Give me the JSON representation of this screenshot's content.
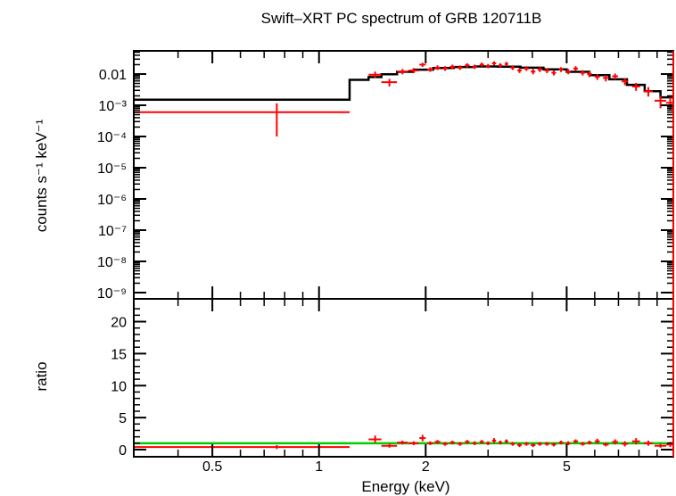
{
  "chart_data": {
    "type": "scatter",
    "title": "Swift–XRT PC spectrum of GRB 120711B",
    "xlabel": "Energy (keV)",
    "x_scale": "log",
    "xlim": [
      0.3,
      10
    ],
    "x_ticks": [
      "0.5",
      "1",
      "2",
      "5"
    ],
    "colors": {
      "data": "#ff0000",
      "model": "#000000",
      "unity": "#00cc00",
      "frame": "#000000"
    },
    "top_panel": {
      "ylabel": "counts s⁻¹ keV⁻¹",
      "y_scale": "log",
      "ylim": [
        0.0006,
        0.035
      ],
      "y_ticks": [
        "0.01",
        "10⁻³",
        "10⁻⁴",
        "10⁻⁵",
        "10⁻⁶",
        "10⁻⁷",
        "10⁻⁸",
        "10⁻⁹"
      ],
      "data_points": [
        {
          "x": 0.76,
          "xlo": 0.3,
          "xhi": 1.22,
          "y": 0.0006,
          "ylo": 0.0001,
          "yhi": 0.00115
        },
        {
          "x": 1.44,
          "xlo": 1.38,
          "xhi": 1.5,
          "y": 0.0095,
          "ylo": 0.0075,
          "yhi": 0.012
        },
        {
          "x": 1.58,
          "xlo": 1.5,
          "xhi": 1.66,
          "y": 0.0055,
          "ylo": 0.004,
          "yhi": 0.007
        },
        {
          "x": 1.72,
          "xlo": 1.66,
          "xhi": 1.78,
          "y": 0.012,
          "ylo": 0.0098,
          "yhi": 0.0145
        },
        {
          "x": 1.85,
          "xlo": 1.79,
          "xhi": 1.91,
          "y": 0.013,
          "ylo": 0.0108,
          "yhi": 0.0155
        },
        {
          "x": 1.96,
          "xlo": 1.92,
          "xhi": 2.0,
          "y": 0.02,
          "ylo": 0.017,
          "yhi": 0.023
        },
        {
          "x": 2.06,
          "xlo": 2.02,
          "xhi": 2.1,
          "y": 0.014,
          "ylo": 0.0118,
          "yhi": 0.0165
        },
        {
          "x": 2.16,
          "xlo": 2.12,
          "xhi": 2.2,
          "y": 0.016,
          "ylo": 0.0135,
          "yhi": 0.019
        },
        {
          "x": 2.27,
          "xlo": 2.23,
          "xhi": 2.31,
          "y": 0.015,
          "ylo": 0.0127,
          "yhi": 0.0178
        },
        {
          "x": 2.38,
          "xlo": 2.34,
          "xhi": 2.42,
          "y": 0.017,
          "ylo": 0.0145,
          "yhi": 0.02
        },
        {
          "x": 2.5,
          "xlo": 2.46,
          "xhi": 2.54,
          "y": 0.016,
          "ylo": 0.0136,
          "yhi": 0.0188
        },
        {
          "x": 2.62,
          "xlo": 2.58,
          "xhi": 2.66,
          "y": 0.019,
          "ylo": 0.0162,
          "yhi": 0.0222
        },
        {
          "x": 2.75,
          "xlo": 2.71,
          "xhi": 2.79,
          "y": 0.017,
          "ylo": 0.0145,
          "yhi": 0.02
        },
        {
          "x": 2.88,
          "xlo": 2.84,
          "xhi": 2.92,
          "y": 0.02,
          "ylo": 0.0172,
          "yhi": 0.0232
        },
        {
          "x": 3.0,
          "xlo": 2.96,
          "xhi": 3.04,
          "y": 0.018,
          "ylo": 0.0154,
          "yhi": 0.021
        },
        {
          "x": 3.12,
          "xlo": 3.08,
          "xhi": 3.16,
          "y": 0.022,
          "ylo": 0.0188,
          "yhi": 0.0255
        },
        {
          "x": 3.25,
          "xlo": 3.21,
          "xhi": 3.29,
          "y": 0.019,
          "ylo": 0.0162,
          "yhi": 0.0222
        },
        {
          "x": 3.38,
          "xlo": 3.34,
          "xhi": 3.42,
          "y": 0.021,
          "ylo": 0.018,
          "yhi": 0.0245
        },
        {
          "x": 3.52,
          "xlo": 3.47,
          "xhi": 3.57,
          "y": 0.016,
          "ylo": 0.0135,
          "yhi": 0.019
        },
        {
          "x": 3.68,
          "xlo": 3.63,
          "xhi": 3.73,
          "y": 0.013,
          "ylo": 0.0108,
          "yhi": 0.0155
        },
        {
          "x": 3.85,
          "xlo": 3.79,
          "xhi": 3.91,
          "y": 0.015,
          "ylo": 0.0126,
          "yhi": 0.0178
        },
        {
          "x": 4.02,
          "xlo": 3.96,
          "xhi": 4.08,
          "y": 0.012,
          "ylo": 0.0098,
          "yhi": 0.0145
        },
        {
          "x": 4.2,
          "xlo": 4.14,
          "xhi": 4.26,
          "y": 0.014,
          "ylo": 0.0116,
          "yhi": 0.0166
        },
        {
          "x": 4.4,
          "xlo": 4.33,
          "xhi": 4.47,
          "y": 0.013,
          "ylo": 0.0107,
          "yhi": 0.0155
        },
        {
          "x": 4.6,
          "xlo": 4.53,
          "xhi": 4.67,
          "y": 0.011,
          "ylo": 0.009,
          "yhi": 0.0132
        },
        {
          "x": 4.82,
          "xlo": 4.75,
          "xhi": 4.89,
          "y": 0.014,
          "ylo": 0.0116,
          "yhi": 0.0166
        },
        {
          "x": 5.05,
          "xlo": 4.97,
          "xhi": 5.13,
          "y": 0.012,
          "ylo": 0.0098,
          "yhi": 0.0145
        },
        {
          "x": 5.3,
          "xlo": 5.22,
          "xhi": 5.38,
          "y": 0.015,
          "ylo": 0.0125,
          "yhi": 0.0178
        },
        {
          "x": 5.55,
          "xlo": 5.46,
          "xhi": 5.64,
          "y": 0.011,
          "ylo": 0.009,
          "yhi": 0.0132
        },
        {
          "x": 5.8,
          "xlo": 5.71,
          "xhi": 5.89,
          "y": 0.01,
          "ylo": 0.008,
          "yhi": 0.0122
        },
        {
          "x": 6.1,
          "xlo": 6.0,
          "xhi": 6.2,
          "y": 0.0082,
          "ylo": 0.0065,
          "yhi": 0.01
        },
        {
          "x": 6.45,
          "xlo": 6.33,
          "xhi": 6.57,
          "y": 0.0075,
          "ylo": 0.0058,
          "yhi": 0.0093
        },
        {
          "x": 6.85,
          "xlo": 6.72,
          "xhi": 6.98,
          "y": 0.0085,
          "ylo": 0.0067,
          "yhi": 0.0104
        },
        {
          "x": 7.3,
          "xlo": 7.15,
          "xhi": 7.45,
          "y": 0.0058,
          "ylo": 0.0044,
          "yhi": 0.0073
        },
        {
          "x": 7.85,
          "xlo": 7.65,
          "xhi": 8.05,
          "y": 0.004,
          "ylo": 0.0029,
          "yhi": 0.0052
        },
        {
          "x": 8.5,
          "xlo": 8.25,
          "xhi": 8.75,
          "y": 0.0028,
          "ylo": 0.0019,
          "yhi": 0.0038
        },
        {
          "x": 9.2,
          "xlo": 8.85,
          "xhi": 9.55,
          "y": 0.0014,
          "ylo": 0.0008,
          "yhi": 0.002
        },
        {
          "x": 9.8,
          "xlo": 9.55,
          "xhi": 10.0,
          "y": 0.0012,
          "ylo": 0.0007,
          "yhi": 0.0018
        }
      ],
      "model_steps": [
        {
          "xlo": 0.3,
          "xhi": 1.22,
          "y": 0.0015
        },
        {
          "xlo": 1.22,
          "xhi": 1.38,
          "y": 0.0065
        },
        {
          "xlo": 1.38,
          "xhi": 1.5,
          "y": 0.008
        },
        {
          "xlo": 1.5,
          "xhi": 1.66,
          "y": 0.0098
        },
        {
          "xlo": 1.66,
          "xhi": 1.85,
          "y": 0.0118
        },
        {
          "xlo": 1.85,
          "xhi": 2.1,
          "y": 0.0138
        },
        {
          "xlo": 2.1,
          "xhi": 2.4,
          "y": 0.0155
        },
        {
          "xlo": 2.4,
          "xhi": 2.75,
          "y": 0.0168
        },
        {
          "xlo": 2.75,
          "xhi": 3.2,
          "y": 0.0175
        },
        {
          "xlo": 3.2,
          "xhi": 3.7,
          "y": 0.0172
        },
        {
          "xlo": 3.7,
          "xhi": 4.3,
          "y": 0.016
        },
        {
          "xlo": 4.3,
          "xhi": 5.0,
          "y": 0.0142
        },
        {
          "xlo": 5.0,
          "xhi": 5.8,
          "y": 0.0118
        },
        {
          "xlo": 5.8,
          "xhi": 6.6,
          "y": 0.0092
        },
        {
          "xlo": 6.6,
          "xhi": 7.4,
          "y": 0.0068
        },
        {
          "xlo": 7.4,
          "xhi": 8.3,
          "y": 0.0045
        },
        {
          "xlo": 8.3,
          "xhi": 9.2,
          "y": 0.0028
        },
        {
          "xlo": 9.2,
          "xhi": 10.0,
          "y": 0.0018
        }
      ]
    },
    "bottom_panel": {
      "ylabel": "ratio",
      "ylim": [
        0,
        23
      ],
      "y_ticks": [
        "0",
        "5",
        "10",
        "15",
        "20"
      ],
      "unity_line": 1,
      "ratio_points": [
        {
          "x": 0.76,
          "xlo": 0.3,
          "xhi": 1.22,
          "y": 0.4,
          "ylo": 0.1,
          "yhi": 0.7
        },
        {
          "x": 1.44,
          "xlo": 1.38,
          "xhi": 1.5,
          "y": 1.6,
          "ylo": 1.1,
          "yhi": 2.2
        },
        {
          "x": 1.58,
          "xlo": 1.5,
          "xhi": 1.66,
          "y": 0.6,
          "ylo": 0.3,
          "yhi": 0.9
        },
        {
          "x": 1.72,
          "xlo": 1.66,
          "xhi": 1.78,
          "y": 1.1,
          "ylo": 0.8,
          "yhi": 1.4
        },
        {
          "x": 1.85,
          "xlo": 1.79,
          "xhi": 1.91,
          "y": 1.0,
          "ylo": 0.7,
          "yhi": 1.3
        },
        {
          "x": 1.96,
          "xlo": 1.92,
          "xhi": 2.0,
          "y": 1.8,
          "ylo": 1.3,
          "yhi": 2.3
        },
        {
          "x": 2.06,
          "xlo": 2.02,
          "xhi": 2.1,
          "y": 1.0,
          "ylo": 0.7,
          "yhi": 1.3
        },
        {
          "x": 2.16,
          "xlo": 2.12,
          "xhi": 2.2,
          "y": 1.2,
          "ylo": 0.9,
          "yhi": 1.5
        },
        {
          "x": 2.27,
          "xlo": 2.23,
          "xhi": 2.31,
          "y": 0.9,
          "ylo": 0.6,
          "yhi": 1.2
        },
        {
          "x": 2.38,
          "xlo": 2.34,
          "xhi": 2.42,
          "y": 1.1,
          "ylo": 0.8,
          "yhi": 1.4
        },
        {
          "x": 2.5,
          "xlo": 2.46,
          "xhi": 2.54,
          "y": 0.9,
          "ylo": 0.6,
          "yhi": 1.2
        },
        {
          "x": 2.62,
          "xlo": 2.58,
          "xhi": 2.66,
          "y": 1.2,
          "ylo": 0.9,
          "yhi": 1.5
        },
        {
          "x": 2.75,
          "xlo": 2.71,
          "xhi": 2.79,
          "y": 1.0,
          "ylo": 0.7,
          "yhi": 1.3
        },
        {
          "x": 2.88,
          "xlo": 2.84,
          "xhi": 2.92,
          "y": 1.2,
          "ylo": 0.9,
          "yhi": 1.5
        },
        {
          "x": 3.0,
          "xlo": 2.96,
          "xhi": 3.04,
          "y": 1.0,
          "ylo": 0.7,
          "yhi": 1.3
        },
        {
          "x": 3.12,
          "xlo": 3.08,
          "xhi": 3.16,
          "y": 1.4,
          "ylo": 1.0,
          "yhi": 1.8
        },
        {
          "x": 3.25,
          "xlo": 3.21,
          "xhi": 3.29,
          "y": 1.1,
          "ylo": 0.8,
          "yhi": 1.4
        },
        {
          "x": 3.38,
          "xlo": 3.34,
          "xhi": 3.42,
          "y": 1.3,
          "ylo": 1.0,
          "yhi": 1.6
        },
        {
          "x": 3.52,
          "xlo": 3.47,
          "xhi": 3.57,
          "y": 0.9,
          "ylo": 0.6,
          "yhi": 1.2
        },
        {
          "x": 3.68,
          "xlo": 3.63,
          "xhi": 3.73,
          "y": 0.7,
          "ylo": 0.4,
          "yhi": 1.0
        },
        {
          "x": 3.85,
          "xlo": 3.79,
          "xhi": 3.91,
          "y": 0.9,
          "ylo": 0.6,
          "yhi": 1.2
        },
        {
          "x": 4.02,
          "xlo": 3.96,
          "xhi": 4.08,
          "y": 0.7,
          "ylo": 0.4,
          "yhi": 1.0
        },
        {
          "x": 4.2,
          "xlo": 4.14,
          "xhi": 4.26,
          "y": 0.9,
          "ylo": 0.6,
          "yhi": 1.2
        },
        {
          "x": 4.4,
          "xlo": 4.33,
          "xhi": 4.47,
          "y": 0.9,
          "ylo": 0.6,
          "yhi": 1.2
        },
        {
          "x": 4.6,
          "xlo": 4.53,
          "xhi": 4.67,
          "y": 0.8,
          "ylo": 0.5,
          "yhi": 1.1
        },
        {
          "x": 4.82,
          "xlo": 4.75,
          "xhi": 4.89,
          "y": 1.1,
          "ylo": 0.8,
          "yhi": 1.4
        },
        {
          "x": 5.05,
          "xlo": 4.97,
          "xhi": 5.13,
          "y": 1.0,
          "ylo": 0.7,
          "yhi": 1.3
        },
        {
          "x": 5.3,
          "xlo": 5.22,
          "xhi": 5.38,
          "y": 1.3,
          "ylo": 1.0,
          "yhi": 1.6
        },
        {
          "x": 5.55,
          "xlo": 5.46,
          "xhi": 5.64,
          "y": 0.9,
          "ylo": 0.6,
          "yhi": 1.2
        },
        {
          "x": 5.8,
          "xlo": 5.71,
          "xhi": 5.89,
          "y": 1.1,
          "ylo": 0.8,
          "yhi": 1.4
        },
        {
          "x": 6.1,
          "xlo": 6.0,
          "xhi": 6.2,
          "y": 1.3,
          "ylo": 0.9,
          "yhi": 1.7
        },
        {
          "x": 6.45,
          "xlo": 6.33,
          "xhi": 6.57,
          "y": 0.8,
          "ylo": 0.5,
          "yhi": 1.1
        },
        {
          "x": 6.85,
          "xlo": 6.72,
          "xhi": 6.98,
          "y": 1.2,
          "ylo": 0.8,
          "yhi": 1.6
        },
        {
          "x": 7.3,
          "xlo": 7.15,
          "xhi": 7.45,
          "y": 0.9,
          "ylo": 0.5,
          "yhi": 1.3
        },
        {
          "x": 7.85,
          "xlo": 7.65,
          "xhi": 8.05,
          "y": 1.3,
          "ylo": 0.8,
          "yhi": 1.8
        },
        {
          "x": 8.5,
          "xlo": 8.25,
          "xhi": 8.75,
          "y": 1.0,
          "ylo": 0.6,
          "yhi": 1.4
        },
        {
          "x": 9.2,
          "xlo": 8.85,
          "xhi": 9.55,
          "y": 0.6,
          "ylo": 0.3,
          "yhi": 0.9
        },
        {
          "x": 9.8,
          "xlo": 9.55,
          "xhi": 10.0,
          "y": 0.8,
          "ylo": 0.4,
          "yhi": 1.2
        }
      ]
    }
  }
}
